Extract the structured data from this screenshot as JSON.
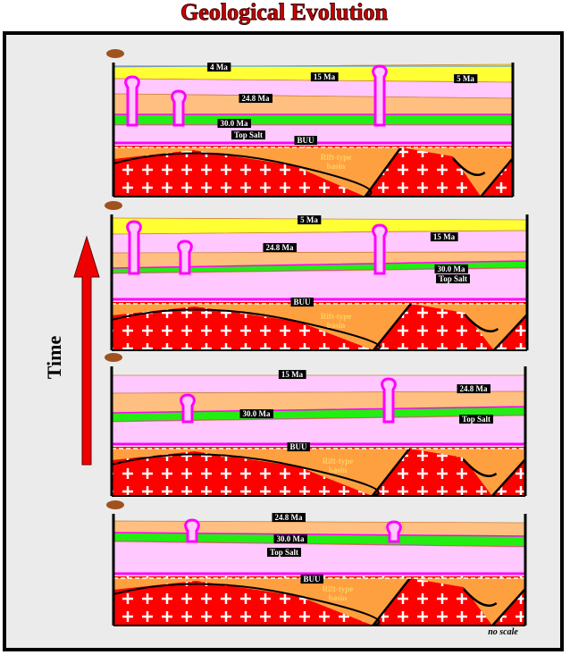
{
  "header": {
    "title": "Geological Evolution"
  },
  "axis": {
    "label": "Time"
  },
  "panels": [
    {
      "labels": [
        "4 Ma",
        "15 Ma",
        "5 Ma",
        "24.8 Ma",
        "30.0 Ma",
        "Top Salt",
        "BUU"
      ],
      "basin": [
        "Rift-type",
        "basin"
      ]
    },
    {
      "labels": [
        "5 Ma",
        "15 Ma",
        "24.8 Ma",
        "30.0 Ma",
        "Top Salt",
        "BUU"
      ],
      "basin": [
        "Rift-type",
        "basin"
      ]
    },
    {
      "labels": [
        "15 Ma",
        "24.8 Ma",
        "30.0 Ma",
        "Top Salt",
        "BUU"
      ],
      "basin": [
        "Rift-type",
        "basin"
      ]
    },
    {
      "labels": [
        "24.8 Ma",
        "30.0 Ma",
        "Top Salt",
        "BUU"
      ],
      "basin": [
        "Rift-type",
        "basin"
      ]
    }
  ],
  "footer": {
    "note": "no scale"
  }
}
